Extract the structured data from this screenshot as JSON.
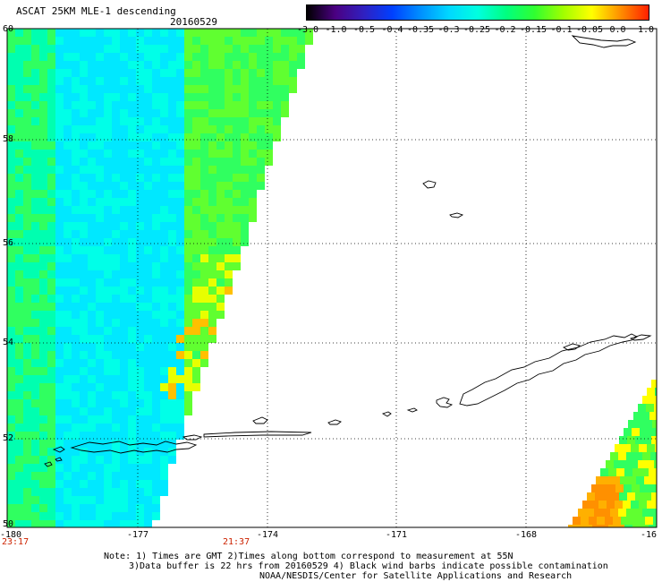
{
  "header": {
    "title": "ASCAT 25KM MLE-1 descending",
    "date": "20160529"
  },
  "colorbar": {
    "labels": [
      "-3.0",
      "-1.0",
      "-0.5",
      "-0.4",
      "-0.35",
      "-0.3",
      "-0.25",
      "-0.2",
      "-0.15",
      "-0.1",
      "-0.05",
      "0.0",
      "1.0"
    ],
    "colors": [
      "#000000",
      "#4b0082",
      "#3020c0",
      "#0040ff",
      "#0090ff",
      "#00d8ff",
      "#00ffe0",
      "#00ff80",
      "#30ff30",
      "#a0ff00",
      "#ffff00",
      "#ff9000",
      "#ff2000"
    ]
  },
  "axes": {
    "lat_labels": [
      "60",
      "58",
      "56",
      "54",
      "52",
      "50"
    ],
    "lon_labels": [
      "-180",
      "-177",
      "-174",
      "-171",
      "-168",
      "-16"
    ],
    "lat_range": [
      50,
      60
    ],
    "lon_range": [
      -180,
      -165
    ]
  },
  "times": {
    "left": "23:17",
    "mid": "21:37"
  },
  "notes": {
    "line1": "Note: 1) Times are GMT 2)Times along bottom correspond to measurement at 55N",
    "line2": "3)Data buffer is 22 hrs from 20160529 4) Black wind barbs indicate possible contamination",
    "line3": "NOAA/NESDIS/Center for Satellite Applications and Research"
  }
}
